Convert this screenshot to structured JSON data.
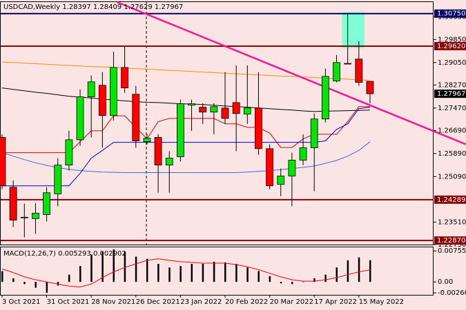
{
  "chart_data": {
    "type": "candlestick",
    "title": "USDCAD,Weekly  1.28397 1.28409 1.27629 1.27967",
    "categories": [
      "3 Oct 2021",
      null,
      null,
      null,
      "31 Oct 2021",
      null,
      null,
      null,
      "28 Nov 2021",
      null,
      null,
      null,
      "26 Dec 2021",
      null,
      null,
      null,
      "23 Jan 2022",
      null,
      null,
      null,
      "20 Feb 2022",
      null,
      null,
      null,
      "20 Mar 2022",
      null,
      null,
      null,
      "17 Apr 2022",
      null,
      null,
      null,
      "15 May 2022",
      null
    ],
    "open": [
      1.2645,
      1.2472,
      1.2367,
      1.2363,
      1.2377,
      1.2449,
      1.2549,
      1.2637,
      1.2786,
      1.2826,
      1.2721,
      1.2888,
      1.2795,
      1.263,
      1.2645,
      1.2549,
      1.2578,
      1.2757,
      1.275,
      1.2733,
      1.2747,
      1.2766,
      1.2726,
      1.2747,
      1.2606,
      1.2482,
      1.2511,
      1.2566,
      1.2609,
      1.2709,
      1.2841,
      1.2902,
      1.2917,
      1.28397
    ],
    "high": [
      1.2656,
      1.2496,
      1.2415,
      1.2417,
      1.2472,
      1.2573,
      1.2668,
      1.2812,
      1.286,
      1.2872,
      1.2943,
      1.296,
      1.2824,
      1.2656,
      1.2656,
      1.2597,
      1.2776,
      1.2776,
      1.2764,
      1.2764,
      1.2872,
      1.2895,
      1.2895,
      1.2872,
      1.2621,
      1.2537,
      1.2592,
      1.2656,
      1.2728,
      1.2884,
      1.2931,
      1.3075,
      1.2979,
      1.28409
    ],
    "low": [
      1.2465,
      1.2334,
      1.2298,
      1.231,
      1.2353,
      1.2406,
      1.253,
      1.2616,
      1.2645,
      1.2609,
      1.2704,
      1.28,
      1.2609,
      1.2621,
      1.2453,
      1.2453,
      1.2561,
      1.2668,
      1.2692,
      1.2656,
      1.2692,
      1.2597,
      1.2692,
      1.2585,
      1.2465,
      1.2441,
      1.2406,
      1.2549,
      1.2458,
      1.2697,
      1.2836,
      1.29,
      1.2824,
      1.27629
    ],
    "close": [
      1.2477,
      1.2358,
      1.2368,
      1.2382,
      1.2453,
      1.2549,
      1.2637,
      1.2786,
      1.2838,
      1.2721,
      1.2888,
      1.2817,
      1.2633,
      1.2642,
      1.2549,
      1.2573,
      1.2762,
      1.2762,
      1.2733,
      1.2752,
      1.2711,
      1.2728,
      1.2747,
      1.2606,
      1.2477,
      1.2511,
      1.2566,
      1.2609,
      1.2709,
      1.2857,
      1.2905,
      1.29,
      1.2836,
      1.27967
    ],
    "up_color": "#00e600",
    "down_color": "#ff0000",
    "ylim": [
      1.2273,
      1.3115
    ],
    "yticks": [
      {
        "value": 1.2273,
        "label": "1.22730"
      },
      {
        "value": 1.2351,
        "label": "1.23510"
      },
      {
        "value": 1.2509,
        "label": "1.25090"
      },
      {
        "value": 1.2589,
        "label": "1.25890"
      },
      {
        "value": 1.2669,
        "label": "1.26690"
      },
      {
        "value": 1.2747,
        "label": "1.27470"
      },
      {
        "value": 1.2827,
        "label": "1.28270"
      },
      {
        "value": 1.2905,
        "label": "1.29050"
      },
      {
        "value": 1.2985,
        "label": "1.29850"
      },
      {
        "value": 1.3063,
        "label": "1.30630"
      }
    ],
    "overlays": [
      {
        "color": "#ff8c00",
        "values": [
          1.2907,
          1.2905,
          1.2903,
          1.2901,
          1.2899,
          1.2897,
          1.2895,
          1.2893,
          1.2891,
          1.289,
          1.2888,
          1.2886,
          1.2884,
          1.2882,
          1.288,
          1.2878,
          1.2876,
          1.2874,
          1.2872,
          1.287,
          1.2868,
          1.2866,
          1.2864,
          1.2862,
          1.286,
          1.2858,
          1.2857,
          1.2855,
          1.2853,
          1.2851,
          1.2849,
          1.2847,
          1.2845,
          1.2843
        ]
      },
      {
        "color": "#000000",
        "values": [
          1.2817,
          1.2812,
          1.2807,
          1.2802,
          1.2798,
          1.2793,
          1.2788,
          1.2785,
          1.2782,
          1.2778,
          1.2775,
          1.2772,
          1.2769,
          1.2767,
          1.2766,
          1.2764,
          1.2762,
          1.2761,
          1.2759,
          1.2757,
          1.2754,
          1.2752,
          1.275,
          1.2747,
          1.2745,
          1.2742,
          1.274,
          1.2737,
          1.2735,
          1.2736,
          1.2737,
          1.2738,
          1.2739,
          1.274
        ]
      },
      {
        "color": "#4169e1",
        "values": [
          1.2592,
          1.258,
          1.2568,
          1.2557,
          1.2548,
          1.254,
          1.2534,
          1.253,
          1.2527,
          1.2525,
          1.2524,
          1.2523,
          1.2523,
          1.2523,
          1.2523,
          1.2523,
          1.2523,
          1.2523,
          1.2523,
          1.2523,
          1.2523,
          1.2523,
          1.2525,
          1.2527,
          1.253,
          1.2533,
          1.2537,
          1.2541,
          1.2546,
          1.2555,
          1.2565,
          1.258,
          1.26,
          1.263
        ]
      },
      {
        "color": "#e00000",
        "values": [
          1.2592,
          1.2592,
          1.2592,
          1.2592,
          1.2592,
          1.2592,
          1.2592,
          1.263,
          1.2668,
          1.2668,
          1.272,
          1.272,
          1.268,
          1.264,
          1.27,
          1.2711,
          1.2711,
          1.2711,
          1.2711,
          1.2711,
          1.2692,
          1.2692,
          1.268,
          1.268,
          1.266,
          1.261,
          1.261,
          1.264,
          1.2656,
          1.2656,
          1.2656,
          1.27,
          1.2752,
          1.2752
        ]
      },
      {
        "color": "#0000cd",
        "values": [
          1.2477,
          1.2477,
          1.2477,
          1.2477,
          1.2477,
          1.2477,
          1.2477,
          1.252,
          1.2573,
          1.26,
          1.2628,
          1.2628,
          1.2628,
          1.2628,
          1.2628,
          1.2628,
          1.2628,
          1.2628,
          1.2628,
          1.2628,
          1.2628,
          1.2628,
          1.2628,
          1.2628,
          1.2628,
          1.2628,
          1.2628,
          1.2628,
          1.2628,
          1.2633,
          1.2673,
          1.2692,
          1.2745,
          1.275
        ]
      }
    ],
    "trendlines": [
      {
        "color": "#ff1493",
        "x": [
          10.3,
          41.6
        ],
        "values": [
          1.3115,
          1.2621
        ]
      }
    ],
    "zones": [
      {
        "color": "#7fffd4",
        "x": [
          30.5,
          32.5
        ],
        "values": [
          1.308,
          1.2955
        ]
      }
    ],
    "levels": [
      {
        "value": 1.3075,
        "label": "1.30750",
        "color": "#000066"
      },
      {
        "value": 1.2962,
        "label": "1.29620",
        "color": "#8b0000"
      },
      {
        "value": 1.24289,
        "label": "1.24289",
        "color": "#8b0000"
      },
      {
        "value": 1.2287,
        "label": "1.22870",
        "color": "#8b0000"
      }
    ],
    "last_price": {
      "value": 1.27967,
      "label": "1.27967"
    },
    "macd": {
      "label": "MACD(12,26,7) 0.005293 0.002902",
      "histogram": [
        0.00264,
        0.00088,
        -0.00053,
        -0.00141,
        -0.00264,
        -0.00088,
        0.00176,
        0.00387,
        0.00668,
        0.00738,
        0.00791,
        0.00738,
        0.00615,
        0.00563,
        0.0044,
        0.00352,
        0.00387,
        0.0044,
        0.0044,
        0.00492,
        0.00475,
        0.0044,
        0.00352,
        0.00264,
        0.00141,
        -0.00035,
        -0.00053,
        0.0,
        0.00088,
        0.00176,
        0.00352,
        0.00527,
        0.00598,
        0.005293
      ],
      "signal": [
        0.00316,
        0.00229,
        0.00123,
        0.00053,
        0.0,
        -0.00053,
        -0.00105,
        -0.00123,
        -0.00053,
        0.00105,
        0.00246,
        0.00352,
        0.0044,
        0.00527,
        0.00563,
        0.00527,
        0.00492,
        0.00475,
        0.00457,
        0.00457,
        0.00457,
        0.00422,
        0.00369,
        0.00299,
        0.00211,
        0.00123,
        0.00053,
        0.00018,
        0.00018,
        0.00053,
        0.00105,
        0.00176,
        0.00246,
        0.002902
      ],
      "hist_color": "#000000",
      "signal_color": "#ff0000",
      "ylim": [
        -0.00316,
        0.00844
      ],
      "yticks": [
        0.007559,
        {
          "value": 0,
          "label": "0.00"
        },
        -0.002669
      ]
    }
  }
}
